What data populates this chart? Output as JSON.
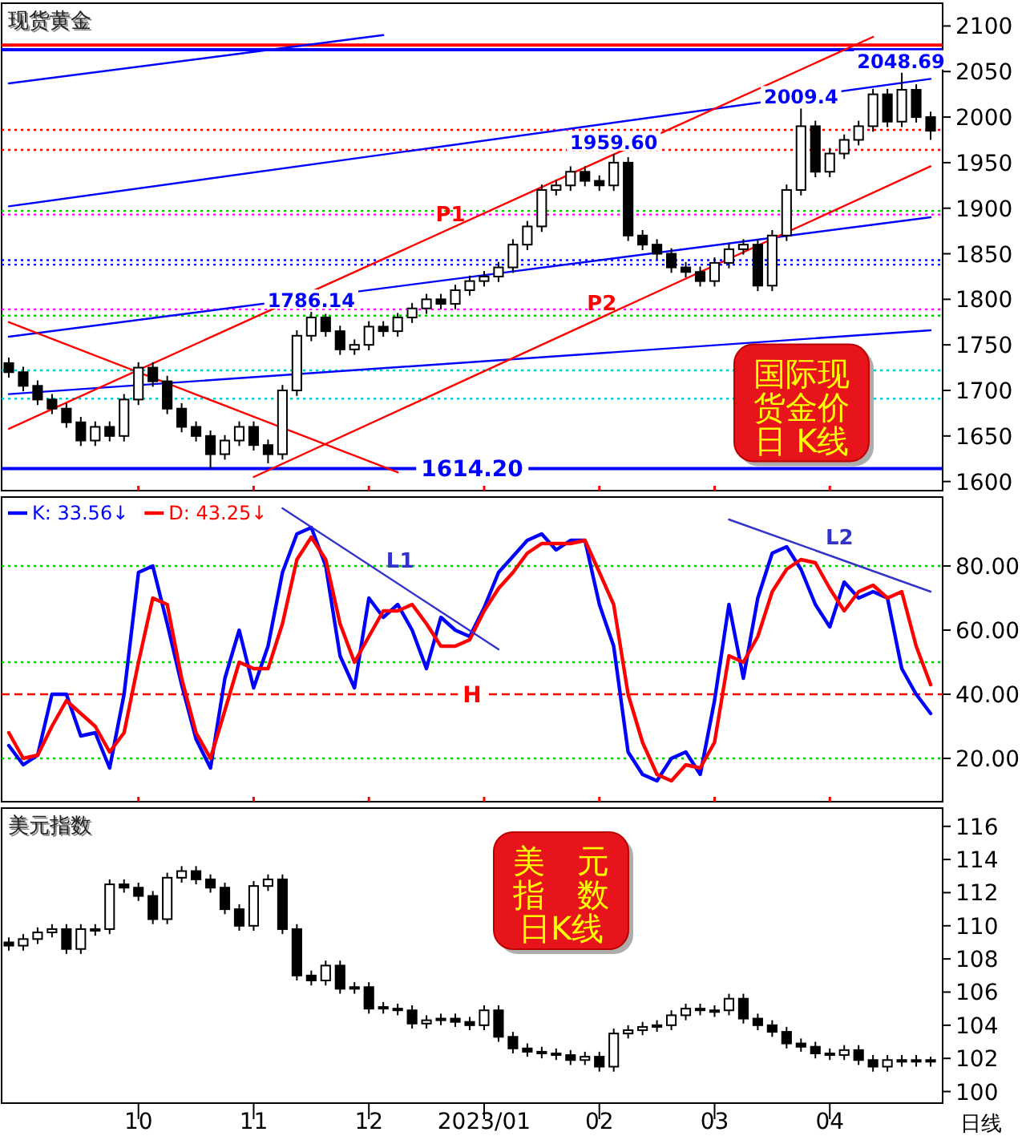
{
  "chart_data": [
    {
      "type": "candlestick",
      "title": "现货黄金",
      "tick_labels": "y",
      "categories": [
        null,
        null,
        null,
        null,
        null,
        null,
        null,
        null,
        null,
        "10",
        null,
        null,
        null,
        null,
        null,
        null,
        null,
        "11",
        null,
        null,
        null,
        null,
        null,
        null,
        null,
        "12",
        null,
        null,
        null,
        null,
        null,
        null,
        null,
        "2023/01",
        null,
        null,
        null,
        null,
        null,
        null,
        null,
        "02",
        null,
        null,
        null,
        null,
        null,
        null,
        null,
        "03",
        null,
        null,
        null,
        null,
        null,
        null,
        null,
        "04",
        null,
        null,
        null,
        null,
        null,
        null,
        null
      ],
      "ylim": [
        1590,
        2125
      ],
      "yticks": [
        1600,
        1650,
        1700,
        1750,
        1800,
        1850,
        1900,
        1950,
        2000,
        2050,
        2100
      ],
      "ohlc": [
        [
          1730,
          1736,
          1714,
          1720
        ],
        [
          1720,
          1726,
          1699,
          1705
        ],
        [
          1705,
          1711,
          1684,
          1690
        ],
        [
          1690,
          1696,
          1674,
          1680
        ],
        [
          1680,
          1686,
          1659,
          1665
        ],
        [
          1665,
          1671,
          1639,
          1645
        ],
        [
          1645,
          1666,
          1639,
          1660
        ],
        [
          1660,
          1666,
          1644,
          1650
        ],
        [
          1650,
          1696,
          1644,
          1690
        ],
        [
          1690,
          1731,
          1684,
          1725
        ],
        [
          1725,
          1731,
          1704,
          1710
        ],
        [
          1710,
          1716,
          1674,
          1680
        ],
        [
          1680,
          1686,
          1654,
          1660
        ],
        [
          1660,
          1666,
          1644,
          1650
        ],
        [
          1650,
          1656,
          1614.2,
          1630
        ],
        [
          1630,
          1651,
          1624,
          1645
        ],
        [
          1645,
          1666,
          1639,
          1660
        ],
        [
          1660,
          1666,
          1634,
          1640
        ],
        [
          1640,
          1646,
          1620,
          1630
        ],
        [
          1630,
          1706,
          1624,
          1700
        ],
        [
          1700,
          1766,
          1694,
          1760
        ],
        [
          1760,
          1786.14,
          1754,
          1780
        ],
        [
          1780,
          1784,
          1759,
          1765
        ],
        [
          1765,
          1771,
          1739,
          1745
        ],
        [
          1745,
          1756,
          1739,
          1750
        ],
        [
          1750,
          1776,
          1744,
          1770
        ],
        [
          1770,
          1776,
          1759,
          1765
        ],
        [
          1765,
          1785,
          1759,
          1780
        ],
        [
          1780,
          1796,
          1774,
          1790
        ],
        [
          1790,
          1806,
          1784,
          1800
        ],
        [
          1800,
          1806,
          1789,
          1795
        ],
        [
          1795,
          1816,
          1789,
          1810
        ],
        [
          1810,
          1826,
          1804,
          1820
        ],
        [
          1820,
          1831,
          1814,
          1825
        ],
        [
          1825,
          1841,
          1819,
          1835
        ],
        [
          1835,
          1866,
          1829,
          1860
        ],
        [
          1860,
          1886,
          1854,
          1880
        ],
        [
          1880,
          1926,
          1874,
          1920
        ],
        [
          1920,
          1931,
          1914,
          1925
        ],
        [
          1925,
          1946,
          1919,
          1940
        ],
        [
          1940,
          1946,
          1924,
          1930
        ],
        [
          1930,
          1936,
          1919,
          1925
        ],
        [
          1925,
          1959.6,
          1919,
          1950
        ],
        [
          1950,
          1956,
          1864,
          1870
        ],
        [
          1870,
          1876,
          1854,
          1860
        ],
        [
          1860,
          1866,
          1844,
          1850
        ],
        [
          1850,
          1856,
          1829,
          1835
        ],
        [
          1835,
          1841,
          1824,
          1830
        ],
        [
          1830,
          1836,
          1814,
          1820
        ],
        [
          1820,
          1846,
          1814,
          1840
        ],
        [
          1840,
          1861,
          1834,
          1855
        ],
        [
          1855,
          1866,
          1849,
          1860
        ],
        [
          1860,
          1866,
          1809,
          1815
        ],
        [
          1815,
          1876,
          1809,
          1870
        ],
        [
          1870,
          1926,
          1864,
          1920
        ],
        [
          1920,
          2009.4,
          1914,
          1990
        ],
        [
          1990,
          1996,
          1934,
          1940
        ],
        [
          1940,
          1966,
          1934,
          1960
        ],
        [
          1960,
          1981,
          1954,
          1975
        ],
        [
          1975,
          1996,
          1969,
          1990
        ],
        [
          1990,
          2031,
          1984,
          2025
        ],
        [
          2025,
          2031,
          1989,
          1995
        ],
        [
          1995,
          2048.69,
          1989,
          2030
        ],
        [
          2030,
          2036,
          1994,
          2000
        ],
        [
          2000,
          2006,
          1975,
          1985
        ]
      ],
      "series": [
        {
          "type": "line",
          "color": "#0000ff",
          "values": [
            2037,
            null,
            null,
            null,
            null,
            null,
            null,
            null,
            null,
            null,
            null,
            null,
            null,
            null,
            null,
            null,
            null,
            null,
            null,
            null,
            null,
            null,
            null,
            null,
            null,
            null,
            2090,
            null,
            null,
            null,
            null,
            null,
            null,
            null,
            null,
            null,
            null,
            null,
            null,
            null,
            null,
            null,
            null,
            null,
            null,
            null,
            null,
            null,
            null,
            null,
            null,
            null,
            null,
            null,
            null,
            null,
            null,
            null,
            null,
            null,
            null,
            null,
            null,
            null,
            null
          ]
        },
        {
          "type": "line",
          "color": "#0000ff",
          "values": [
            1902,
            null,
            null,
            null,
            null,
            null,
            null,
            null,
            null,
            null,
            null,
            null,
            null,
            null,
            null,
            null,
            null,
            null,
            null,
            null,
            null,
            null,
            null,
            null,
            null,
            null,
            null,
            null,
            null,
            null,
            null,
            null,
            null,
            null,
            null,
            null,
            null,
            null,
            null,
            null,
            null,
            null,
            null,
            null,
            null,
            null,
            null,
            null,
            null,
            null,
            null,
            null,
            null,
            null,
            null,
            null,
            null,
            null,
            null,
            null,
            null,
            null,
            null,
            null,
            2042
          ]
        },
        {
          "type": "line",
          "color": "#0000ff",
          "values": [
            1759,
            null,
            null,
            null,
            null,
            null,
            null,
            null,
            null,
            null,
            null,
            null,
            null,
            null,
            null,
            null,
            null,
            null,
            null,
            null,
            null,
            null,
            null,
            null,
            null,
            null,
            null,
            null,
            null,
            null,
            null,
            null,
            null,
            null,
            null,
            null,
            null,
            null,
            null,
            null,
            null,
            null,
            null,
            null,
            null,
            null,
            null,
            null,
            null,
            null,
            null,
            null,
            null,
            null,
            null,
            null,
            null,
            null,
            null,
            null,
            null,
            null,
            null,
            null,
            1890
          ]
        },
        {
          "type": "line",
          "color": "#0000ff",
          "values": [
            1696,
            null,
            null,
            null,
            null,
            null,
            null,
            null,
            null,
            null,
            null,
            null,
            null,
            null,
            null,
            null,
            null,
            null,
            null,
            null,
            null,
            null,
            null,
            null,
            null,
            null,
            null,
            null,
            null,
            null,
            null,
            null,
            null,
            null,
            null,
            null,
            null,
            null,
            null,
            null,
            null,
            null,
            null,
            null,
            null,
            null,
            null,
            null,
            null,
            null,
            null,
            null,
            null,
            null,
            null,
            null,
            null,
            null,
            null,
            null,
            null,
            null,
            null,
            null,
            1766
          ]
        },
        {
          "type": "line",
          "name": "P1",
          "color": "#ff0000",
          "values": [
            1658,
            null,
            null,
            null,
            null,
            null,
            null,
            null,
            null,
            null,
            null,
            null,
            null,
            null,
            null,
            null,
            null,
            null,
            null,
            null,
            null,
            null,
            null,
            null,
            null,
            null,
            null,
            null,
            null,
            null,
            null,
            null,
            null,
            null,
            null,
            null,
            null,
            null,
            null,
            null,
            null,
            null,
            null,
            null,
            null,
            null,
            null,
            null,
            null,
            null,
            null,
            null,
            null,
            null,
            null,
            null,
            null,
            null,
            null,
            null,
            2088,
            null,
            null,
            null,
            null
          ]
        },
        {
          "type": "line",
          "name": "P2",
          "color": "#ff0000",
          "values": [
            null,
            null,
            null,
            null,
            null,
            null,
            null,
            null,
            null,
            null,
            null,
            null,
            null,
            null,
            null,
            null,
            null,
            1605,
            null,
            null,
            null,
            null,
            null,
            null,
            null,
            null,
            null,
            null,
            null,
            null,
            null,
            null,
            null,
            null,
            null,
            null,
            null,
            null,
            null,
            null,
            null,
            null,
            null,
            null,
            null,
            null,
            null,
            null,
            null,
            null,
            null,
            null,
            null,
            null,
            null,
            null,
            null,
            null,
            null,
            null,
            null,
            null,
            null,
            null,
            1946
          ]
        },
        {
          "type": "line",
          "color": "#ff0000",
          "values": [
            1775,
            null,
            null,
            null,
            null,
            null,
            null,
            null,
            null,
            null,
            null,
            null,
            null,
            null,
            null,
            null,
            null,
            null,
            null,
            null,
            null,
            null,
            null,
            null,
            null,
            null,
            null,
            1610,
            null,
            null,
            null,
            null,
            null,
            null,
            null,
            null,
            null,
            null,
            null,
            null,
            null,
            null,
            null,
            null,
            null,
            null,
            null,
            null,
            null,
            null,
            null,
            null,
            null,
            null,
            null,
            null,
            null,
            null,
            null,
            null,
            null,
            null,
            null,
            null,
            null
          ]
        }
      ],
      "ref_lines": [
        {
          "axis": "y",
          "value": 2079,
          "color": "#ff0000",
          "line_style": "solid"
        },
        {
          "axis": "y",
          "value": 2074,
          "color": "#0000ff",
          "line_style": "solid"
        },
        {
          "axis": "y",
          "value": 1986,
          "color": "#ff0000",
          "line_style": "dotted"
        },
        {
          "axis": "y",
          "value": 1964,
          "color": "#ff0000",
          "line_style": "dotted"
        },
        {
          "axis": "y",
          "value": 1897,
          "color": "#00cc00",
          "line_style": "dotted"
        },
        {
          "axis": "y",
          "value": 1893,
          "color": "#ff00ff",
          "line_style": "dotted"
        },
        {
          "axis": "y",
          "value": 1843,
          "color": "#0000ff",
          "line_style": "dotted"
        },
        {
          "axis": "y",
          "value": 1838,
          "color": "#0000ff",
          "line_style": "dotted"
        },
        {
          "axis": "y",
          "value": 1789,
          "color": "#ff00ff",
          "line_style": "dotted"
        },
        {
          "axis": "y",
          "value": 1782,
          "color": "#00cc00",
          "line_style": "dotted"
        },
        {
          "axis": "y",
          "value": 1722,
          "color": "#00cccc",
          "line_style": "dotted"
        },
        {
          "axis": "y",
          "value": 1691,
          "color": "#00cccc",
          "line_style": "dotted"
        },
        {
          "axis": "y",
          "value": 1614.2,
          "label": "1614.20",
          "color": "#0000ff",
          "line_style": "solid"
        }
      ],
      "annotations": [
        "国际现货金价日 K线",
        {
          "text": "1786.14",
          "y": 1786.14
        },
        {
          "text": "1959.60",
          "y": 1959.6
        },
        {
          "text": "2009.4",
          "y": 2009.4
        },
        {
          "text": "2048.69",
          "y": 2048.69
        }
      ]
    },
    {
      "type": "line",
      "tick_labels": "y",
      "legend": "top left",
      "categories": [
        null,
        null,
        null,
        null,
        null,
        null,
        null,
        null,
        null,
        "10",
        null,
        null,
        null,
        null,
        null,
        null,
        null,
        "11",
        null,
        null,
        null,
        null,
        null,
        null,
        null,
        "12",
        null,
        null,
        null,
        null,
        null,
        null,
        null,
        "2023/01",
        null,
        null,
        null,
        null,
        null,
        null,
        null,
        "02",
        null,
        null,
        null,
        null,
        null,
        null,
        null,
        "03",
        null,
        null,
        null,
        null,
        null,
        null,
        null,
        "04",
        null,
        null,
        null,
        null,
        null,
        null,
        null
      ],
      "ylim": [
        6.5,
        101.5
      ],
      "yticks": [
        {
          "value": 20,
          "label": "20.00"
        },
        {
          "value": 40,
          "label": "40.00"
        },
        {
          "value": 60,
          "label": "60.00"
        },
        {
          "value": 80,
          "label": "80.00"
        }
      ],
      "series": [
        {
          "name": "K: 33.56↓",
          "color": "#0000ff",
          "values": [
            24,
            18,
            21,
            40,
            40,
            27,
            28,
            17,
            40,
            78,
            80,
            62,
            43,
            26,
            17,
            45,
            60,
            42,
            55,
            78,
            90,
            92,
            80,
            52,
            42,
            70,
            64,
            68,
            60,
            48,
            64,
            60,
            58,
            67,
            78,
            83,
            88,
            90,
            85,
            88,
            88,
            68,
            55,
            22,
            15,
            13,
            20,
            22,
            15,
            38,
            68,
            45,
            70,
            84,
            86,
            79,
            68,
            61,
            75,
            70,
            72,
            70,
            48,
            40,
            34
          ]
        },
        {
          "name": "D: 43.25↓",
          "color": "#ff0000",
          "values": [
            28,
            20,
            21,
            30,
            38,
            34,
            30,
            22,
            28,
            50,
            70,
            68,
            45,
            28,
            20,
            35,
            50,
            48,
            48,
            62,
            82,
            89,
            82,
            62,
            50,
            58,
            66,
            66,
            68,
            62,
            55,
            55,
            57,
            66,
            73,
            78,
            84,
            87,
            87,
            87,
            88,
            78,
            68,
            40,
            25,
            15,
            13,
            18,
            17,
            25,
            52,
            50,
            58,
            72,
            79,
            82,
            81,
            73,
            66,
            72,
            74,
            70,
            72,
            55,
            43
          ]
        },
        {
          "name": "L1",
          "color": "#3333cc",
          "values": [
            null,
            null,
            null,
            null,
            null,
            null,
            null,
            null,
            null,
            null,
            null,
            null,
            null,
            null,
            null,
            null,
            null,
            null,
            null,
            98,
            null,
            null,
            null,
            null,
            null,
            null,
            null,
            null,
            null,
            null,
            null,
            null,
            null,
            null,
            54,
            null,
            null,
            null,
            null,
            null,
            null,
            null,
            null,
            null,
            null,
            null,
            null,
            null,
            null,
            null,
            null,
            null,
            null,
            null,
            null,
            null,
            null,
            null,
            null,
            null,
            null,
            null,
            null,
            null,
            null
          ]
        },
        {
          "name": "L2",
          "color": "#3333cc",
          "values": [
            null,
            null,
            null,
            null,
            null,
            null,
            null,
            null,
            null,
            null,
            null,
            null,
            null,
            null,
            null,
            null,
            null,
            null,
            null,
            null,
            null,
            null,
            null,
            null,
            null,
            null,
            null,
            null,
            null,
            null,
            null,
            null,
            null,
            null,
            null,
            null,
            null,
            null,
            null,
            null,
            null,
            null,
            null,
            null,
            null,
            null,
            null,
            null,
            null,
            null,
            94.5,
            null,
            null,
            null,
            null,
            null,
            null,
            null,
            null,
            null,
            null,
            null,
            null,
            null,
            72
          ]
        }
      ],
      "ref_lines": [
        {
          "axis": "y",
          "value": 80,
          "color": "#00cc00",
          "line_style": "dotted"
        },
        {
          "axis": "y",
          "value": 50,
          "color": "#00cc00",
          "line_style": "dotted"
        },
        {
          "axis": "y",
          "value": 20,
          "color": "#00cc00",
          "line_style": "dotted"
        },
        {
          "axis": "y",
          "value": 40,
          "label": "H",
          "color": "#ff0000",
          "line_style": "dashed"
        }
      ]
    },
    {
      "type": "candlestick",
      "title": "美元指数",
      "categories": [
        null,
        null,
        null,
        null,
        null,
        null,
        null,
        null,
        null,
        "10",
        null,
        null,
        null,
        null,
        null,
        null,
        null,
        "11",
        null,
        null,
        null,
        null,
        null,
        null,
        null,
        "12",
        null,
        null,
        null,
        null,
        null,
        null,
        null,
        "2023/01",
        null,
        null,
        null,
        null,
        null,
        null,
        null,
        "02",
        null,
        null,
        null,
        null,
        null,
        null,
        null,
        "03",
        null,
        null,
        null,
        null,
        null,
        null,
        null,
        "04",
        null,
        null,
        null,
        null,
        null,
        null,
        null
      ],
      "ylim": [
        99.3,
        117.1
      ],
      "yticks": [
        100,
        102,
        104,
        106,
        108,
        110,
        112,
        114,
        116
      ],
      "ohlc": [
        [
          109.0,
          109.3,
          108.5,
          108.8
        ],
        [
          108.8,
          109.5,
          108.5,
          109.2
        ],
        [
          109.2,
          109.9,
          108.9,
          109.6
        ],
        [
          109.6,
          110.1,
          109.3,
          109.8
        ],
        [
          109.8,
          110.1,
          108.3,
          108.6
        ],
        [
          108.6,
          110.1,
          108.3,
          109.8
        ],
        [
          109.7,
          110.1,
          109.4,
          109.8
        ],
        [
          109.8,
          112.8,
          109.5,
          112.5
        ],
        [
          112.5,
          112.8,
          112.0,
          112.3
        ],
        [
          112.3,
          112.6,
          111.5,
          111.8
        ],
        [
          111.8,
          112.1,
          110.1,
          110.4
        ],
        [
          110.4,
          113.2,
          110.1,
          112.9
        ],
        [
          112.9,
          113.6,
          112.6,
          113.3
        ],
        [
          113.3,
          113.6,
          112.5,
          112.8
        ],
        [
          112.8,
          113.1,
          112.0,
          112.3
        ],
        [
          112.3,
          112.6,
          110.7,
          111.0
        ],
        [
          111.0,
          111.3,
          109.7,
          110.0
        ],
        [
          110.0,
          112.7,
          109.7,
          112.4
        ],
        [
          112.4,
          113.1,
          112.1,
          112.8
        ],
        [
          112.8,
          113.1,
          109.5,
          109.8
        ],
        [
          109.8,
          110.1,
          106.7,
          107.0
        ],
        [
          107.0,
          107.3,
          106.4,
          106.7
        ],
        [
          106.7,
          107.9,
          106.4,
          107.6
        ],
        [
          107.6,
          107.9,
          105.9,
          106.2
        ],
        [
          106.2,
          106.6,
          105.9,
          106.3
        ],
        [
          106.3,
          106.6,
          104.7,
          105.0
        ],
        [
          105.1,
          105.4,
          104.7,
          105.0
        ],
        [
          105.0,
          105.3,
          104.6,
          104.9
        ],
        [
          104.9,
          105.2,
          103.8,
          104.1
        ],
        [
          104.1,
          104.6,
          103.8,
          104.3
        ],
        [
          104.3,
          104.7,
          104.0,
          104.4
        ],
        [
          104.4,
          104.7,
          103.9,
          104.2
        ],
        [
          104.2,
          104.5,
          103.7,
          104.0
        ],
        [
          104.0,
          105.2,
          103.7,
          104.9
        ],
        [
          104.9,
          105.2,
          103.0,
          103.3
        ],
        [
          103.3,
          103.6,
          102.3,
          102.6
        ],
        [
          102.6,
          102.9,
          102.1,
          102.4
        ],
        [
          102.4,
          102.7,
          102.0,
          102.3
        ],
        [
          102.3,
          102.6,
          101.9,
          102.2
        ],
        [
          102.2,
          102.5,
          101.6,
          101.9
        ],
        [
          101.9,
          102.4,
          101.6,
          102.1
        ],
        [
          102.1,
          102.4,
          101.2,
          101.5
        ],
        [
          101.5,
          103.8,
          101.2,
          103.5
        ],
        [
          103.5,
          104.0,
          103.2,
          103.7
        ],
        [
          103.7,
          104.2,
          103.4,
          103.9
        ],
        [
          103.9,
          104.3,
          103.6,
          104.0
        ],
        [
          104.0,
          104.9,
          103.7,
          104.6
        ],
        [
          104.6,
          105.3,
          104.3,
          105.0
        ],
        [
          105.0,
          105.3,
          104.6,
          104.9
        ],
        [
          104.8,
          105.2,
          104.5,
          104.9
        ],
        [
          104.9,
          105.9,
          104.6,
          105.6
        ],
        [
          105.6,
          105.9,
          104.1,
          104.4
        ],
        [
          104.4,
          104.7,
          103.7,
          104.0
        ],
        [
          104.0,
          104.3,
          103.3,
          103.6
        ],
        [
          103.6,
          103.9,
          102.6,
          102.9
        ],
        [
          102.9,
          103.2,
          102.4,
          102.7
        ],
        [
          102.7,
          103.0,
          102.0,
          102.3
        ],
        [
          102.3,
          102.6,
          101.9,
          102.2
        ],
        [
          102.2,
          102.8,
          101.9,
          102.5
        ],
        [
          102.5,
          102.8,
          101.6,
          101.9
        ],
        [
          101.9,
          102.2,
          101.2,
          101.5
        ],
        [
          101.5,
          102.2,
          101.2,
          101.9
        ],
        [
          101.8,
          102.2,
          101.5,
          101.9
        ],
        [
          101.9,
          102.2,
          101.5,
          101.8
        ],
        [
          101.9,
          102.1,
          101.5,
          101.8
        ]
      ],
      "annotations": [
        "美　元指　数日K线",
        "日线"
      ]
    }
  ]
}
